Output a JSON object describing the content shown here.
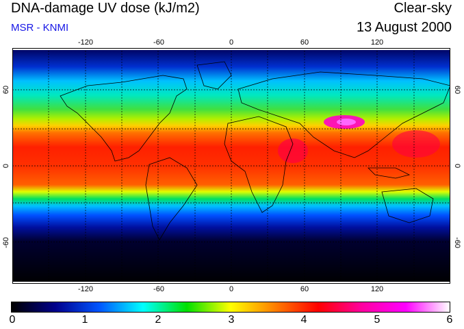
{
  "header": {
    "title": "DNA-damage UV dose (kJ/m2)",
    "subtitle": "MSR - KNMI",
    "subtitle_color": "#1515e6",
    "condition": "Clear-sky",
    "date": "13 August 2000"
  },
  "map": {
    "lon_ticks": [
      "-120",
      "-60",
      "0",
      "60",
      "120"
    ],
    "lat_ticks_left": [
      "60",
      "0",
      "-60"
    ],
    "lat_ticks_right": [
      "60",
      "0",
      "-60"
    ],
    "grid": "dotted 30 degree graticule",
    "coastline_color": "#000000"
  },
  "colorbar": {
    "labels": [
      "0",
      "1",
      "2",
      "3",
      "4",
      "5",
      "6"
    ],
    "stops": [
      "#000000",
      "#00008b",
      "#0055ff",
      "#00ffff",
      "#00e000",
      "#ffff00",
      "#ff8000",
      "#ff0000",
      "#ff00a0",
      "#ff00ff",
      "#ffffff"
    ]
  }
}
